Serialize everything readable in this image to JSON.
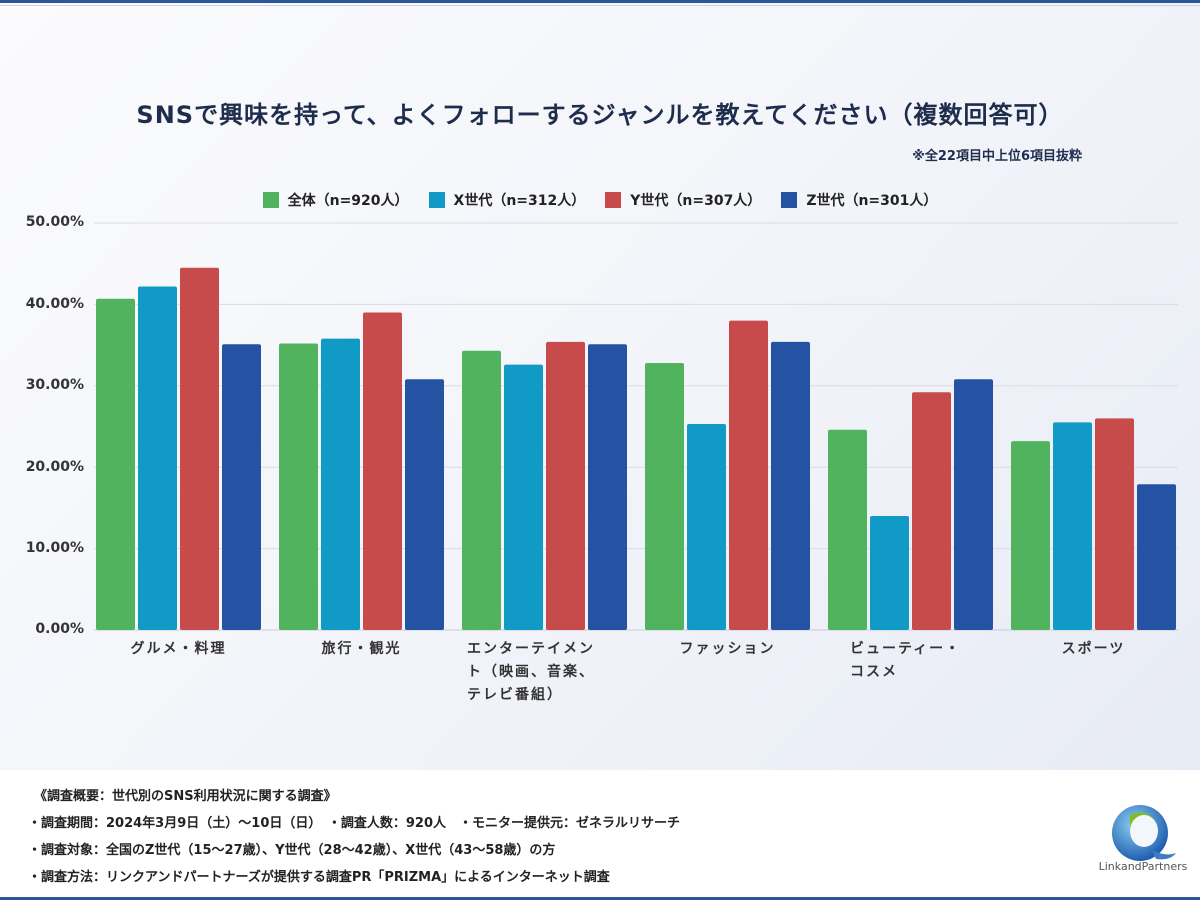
{
  "title": "SNSで興味を持って、よくフォローするジャンルを教えてください（複数回答可）",
  "note": "※全22項目中上位6項目抜粋",
  "colors": {
    "all": "#52b35f",
    "gen_x": "#129ac6",
    "gen_y": "#c84b4b",
    "gen_z": "#2353a2",
    "title": "#1f2d4d",
    "grid": "#d9dce3"
  },
  "chart_data": {
    "type": "bar",
    "title": "SNSで興味を持って、よくフォローするジャンルを教えてください（複数回答可）",
    "subtitle": "※全22項目中上位6項目抜粋",
    "xlabel": "",
    "ylabel": "",
    "ylim": [
      0,
      50
    ],
    "yticks": [
      "0.00%",
      "10.00%",
      "20.00%",
      "30.00%",
      "40.00%",
      "50.00%"
    ],
    "grid": true,
    "legend_position": "top-center",
    "categories": [
      [
        "グルメ・料理"
      ],
      [
        "旅行・観光"
      ],
      [
        "エンターテイメン",
        "ト（映画、音楽、",
        "テレビ番組）"
      ],
      [
        "ファッション"
      ],
      [
        "ビューティー・",
        "コスメ"
      ],
      [
        "スポーツ"
      ]
    ],
    "series": [
      {
        "name": "全体（n=920人）",
        "color": "#52b35f",
        "values": [
          40.7,
          35.2,
          34.3,
          32.8,
          24.6,
          23.2
        ]
      },
      {
        "name": "X世代（n=312人）",
        "color": "#129ac6",
        "values": [
          42.2,
          35.8,
          32.6,
          25.3,
          14.0,
          25.5
        ]
      },
      {
        "name": "Y世代（n=307人）",
        "color": "#c84b4b",
        "values": [
          44.5,
          39.0,
          35.4,
          38.0,
          29.2,
          26.0
        ]
      },
      {
        "name": "Z世代（n=301人）",
        "color": "#2353a2",
        "values": [
          35.1,
          30.8,
          35.1,
          35.4,
          30.8,
          17.9
        ]
      }
    ]
  },
  "footer": {
    "lines": [
      "《調査概要：世代別のSNS利用状況に関する調査》",
      "・調査期間：2024年3月9日（土）～10日（日）　・調査人数：920人　・モニター提供元：ゼネラルリサーチ",
      "・調査対象：全国のZ世代（15～27歳）、Y世代（28～42歳）、X世代（43～58歳）の方",
      "・調査方法：リンクアンドパートナーズが提供する調査PR「PRIZMA」によるインターネット調査"
    ],
    "logo_text": "LinkandPartners"
  }
}
